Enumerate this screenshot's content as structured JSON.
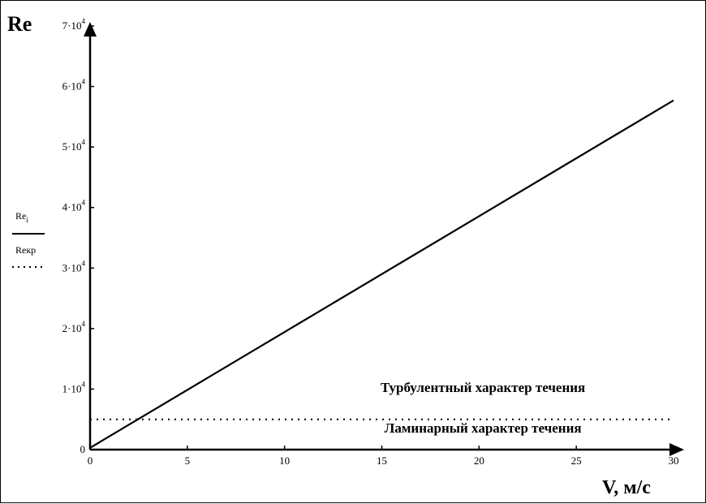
{
  "chart_data": {
    "type": "line",
    "ylabel": "Re",
    "xlabel": "V, м/с",
    "xlim": [
      0,
      30
    ],
    "ylim": [
      0,
      70000
    ],
    "xticks": [
      {
        "value": 0,
        "label": "0"
      },
      {
        "value": 5,
        "label": "5"
      },
      {
        "value": 10,
        "label": "10"
      },
      {
        "value": 15,
        "label": "15"
      },
      {
        "value": 20,
        "label": "20"
      },
      {
        "value": 25,
        "label": "25"
      },
      {
        "value": 30,
        "label": "30"
      }
    ],
    "yticks": [
      {
        "value": 0,
        "label": "0",
        "exp": ""
      },
      {
        "value": 10000,
        "label": "1·10",
        "exp": "4"
      },
      {
        "value": 20000,
        "label": "2·10",
        "exp": "4"
      },
      {
        "value": 30000,
        "label": "3·10",
        "exp": "4"
      },
      {
        "value": 40000,
        "label": "4·10",
        "exp": "4"
      },
      {
        "value": 50000,
        "label": "5·10",
        "exp": "4"
      },
      {
        "value": 60000,
        "label": "6·10",
        "exp": "4"
      },
      {
        "value": 70000,
        "label": "7·10",
        "exp": "4"
      }
    ],
    "series": [
      {
        "name": "Re_i",
        "style": "solid",
        "color": "#000000",
        "x": [
          0,
          30
        ],
        "y": [
          300,
          57700
        ]
      },
      {
        "name": "Reкр",
        "style": "dotted",
        "color": "#000000",
        "x": [
          0,
          30
        ],
        "y": [
          5000,
          5000
        ]
      }
    ],
    "legend": {
      "placement": "left",
      "entries": [
        {
          "main": "Re",
          "sub": "i"
        },
        {
          "main": "Reкр",
          "sub": ""
        }
      ]
    },
    "annotations": [
      {
        "text": "Турбулентный характер течения",
        "x": 20.2,
        "y": 9500
      },
      {
        "text": "Ламинарный характер течения",
        "x": 20.2,
        "y": 2800
      }
    ],
    "grid": false
  }
}
